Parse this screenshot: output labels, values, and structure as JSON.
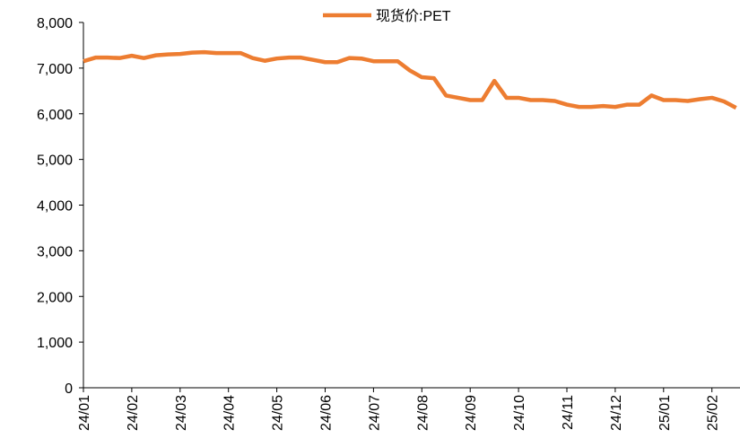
{
  "chart_data": {
    "type": "line",
    "categories": [
      "24/01",
      null,
      null,
      null,
      "24/02",
      null,
      null,
      null,
      "24/03",
      null,
      null,
      null,
      "24/04",
      null,
      null,
      null,
      "24/05",
      null,
      null,
      null,
      "24/06",
      null,
      null,
      null,
      "24/07",
      null,
      null,
      null,
      "24/08",
      null,
      null,
      null,
      "24/09",
      null,
      null,
      null,
      "24/10",
      null,
      null,
      null,
      "24/11",
      null,
      null,
      null,
      "24/12",
      null,
      null,
      null,
      "25/01",
      null,
      null,
      null,
      "25/02",
      null,
      null
    ],
    "series": [
      {
        "name": "现货价:PET",
        "color": "#ED7D31",
        "values": [
          7150,
          7230,
          7230,
          7220,
          7270,
          7220,
          7280,
          7300,
          7310,
          7340,
          7350,
          7330,
          7330,
          7330,
          7220,
          7160,
          7210,
          7230,
          7230,
          7180,
          7130,
          7130,
          7220,
          7210,
          7150,
          7150,
          7150,
          6950,
          6800,
          6780,
          6400,
          6350,
          6300,
          6300,
          6720,
          6350,
          6350,
          6300,
          6300,
          6280,
          6200,
          6150,
          6150,
          6170,
          6150,
          6200,
          6200,
          6400,
          6300,
          6300,
          6280,
          6320,
          6350,
          6270,
          6130
        ]
      }
    ],
    "ylim": [
      0,
      8000
    ],
    "yticks": [
      0,
      {
        "value": 1000,
        "label": "1,000"
      },
      {
        "value": 2000,
        "label": "2,000"
      },
      {
        "value": 3000,
        "label": "3,000"
      },
      {
        "value": 4000,
        "label": "4,000"
      },
      {
        "value": 5000,
        "label": "5,000"
      },
      {
        "value": 6000,
        "label": "6,000"
      },
      {
        "value": 7000,
        "label": "7,000"
      },
      {
        "value": 8000,
        "label": "8,000"
      }
    ],
    "grid": false,
    "legend": "top"
  }
}
